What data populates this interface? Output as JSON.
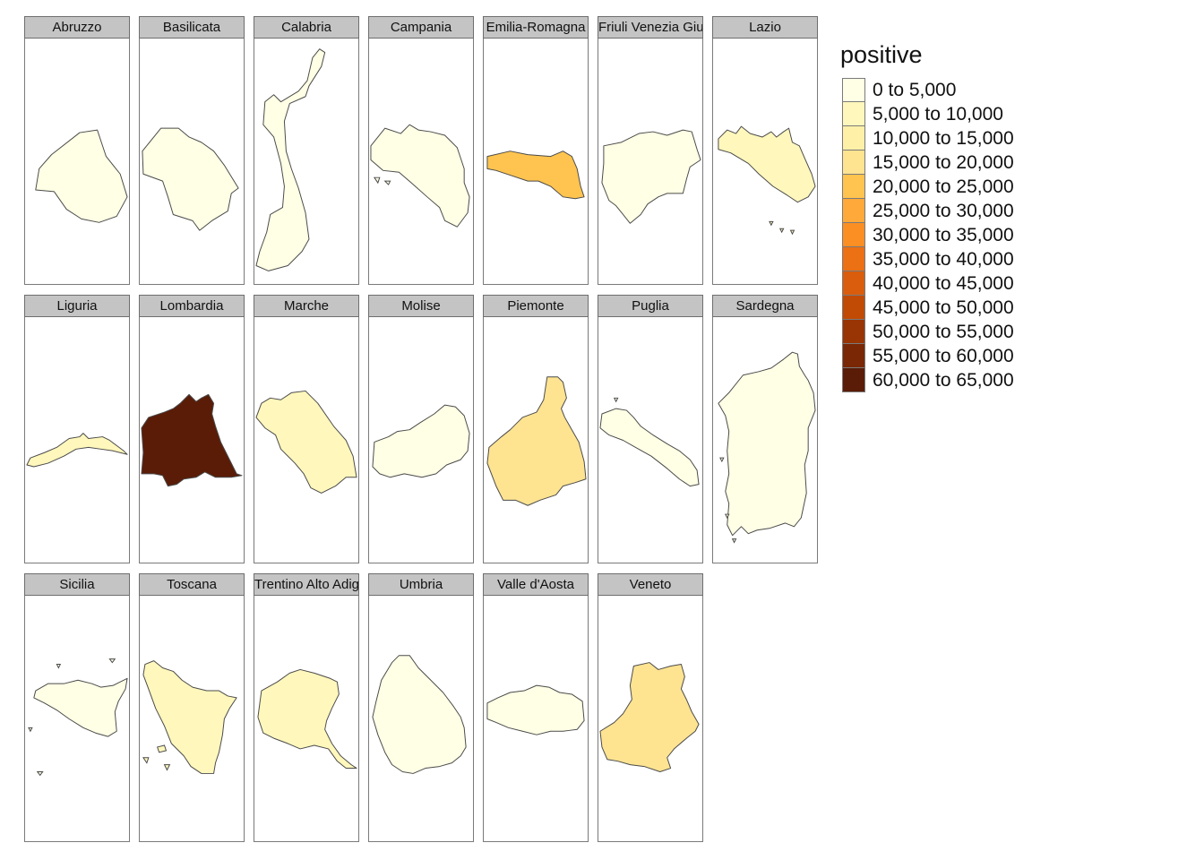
{
  "legend": {
    "title": "positive",
    "classes": [
      {
        "label": "0 to 5,000",
        "color": "#ffffe5"
      },
      {
        "label": "5,000 to 10,000",
        "color": "#fff7bc"
      },
      {
        "label": "10,000 to 15,000",
        "color": "#fff0a8"
      },
      {
        "label": "15,000 to 20,000",
        "color": "#fee391"
      },
      {
        "label": "20,000 to 25,000",
        "color": "#fec44f"
      },
      {
        "label": "25,000 to 30,000",
        "color": "#fea93a"
      },
      {
        "label": "30,000 to 35,000",
        "color": "#fb8f24"
      },
      {
        "label": "35,000 to 40,000",
        "color": "#ec7014"
      },
      {
        "label": "40,000 to 45,000",
        "color": "#d95d0c"
      },
      {
        "label": "45,000 to 50,000",
        "color": "#c14a04"
      },
      {
        "label": "50,000 to 55,000",
        "color": "#993404"
      },
      {
        "label": "55,000 to 60,000",
        "color": "#7a2706"
      },
      {
        "label": "60,000 to 65,000",
        "color": "#5a1c07"
      }
    ]
  },
  "regions": [
    {
      "name": "Abruzzo",
      "class_index": 0,
      "shape": "abruzzo"
    },
    {
      "name": "Basilicata",
      "class_index": 0,
      "shape": "basilicata"
    },
    {
      "name": "Calabria",
      "class_index": 0,
      "shape": "calabria"
    },
    {
      "name": "Campania",
      "class_index": 0,
      "shape": "campania"
    },
    {
      "name": "Emilia-Romagna",
      "class_index": 4,
      "shape": "emilia"
    },
    {
      "name": "Friuli Venezia Giulia",
      "class_index": 0,
      "shape": "friuli"
    },
    {
      "name": "Lazio",
      "class_index": 1,
      "shape": "lazio"
    },
    {
      "name": "Liguria",
      "class_index": 1,
      "shape": "liguria"
    },
    {
      "name": "Lombardia",
      "class_index": 12,
      "shape": "lombardia"
    },
    {
      "name": "Marche",
      "class_index": 1,
      "shape": "marche"
    },
    {
      "name": "Molise",
      "class_index": 0,
      "shape": "molise"
    },
    {
      "name": "Piemonte",
      "class_index": 3,
      "shape": "piemonte"
    },
    {
      "name": "Puglia",
      "class_index": 0,
      "shape": "puglia"
    },
    {
      "name": "Sardegna",
      "class_index": 0,
      "shape": "sardegna"
    },
    {
      "name": "Sicilia",
      "class_index": 0,
      "shape": "sicilia"
    },
    {
      "name": "Toscana",
      "class_index": 1,
      "shape": "toscana"
    },
    {
      "name": "Trentino Alto Adige",
      "class_index": 1,
      "shape": "trentino"
    },
    {
      "name": "Umbria",
      "class_index": 0,
      "shape": "umbria"
    },
    {
      "name": "Valle d'Aosta",
      "class_index": 0,
      "shape": "aosta"
    },
    {
      "name": "Veneto",
      "class_index": 3,
      "shape": "veneto"
    }
  ]
}
